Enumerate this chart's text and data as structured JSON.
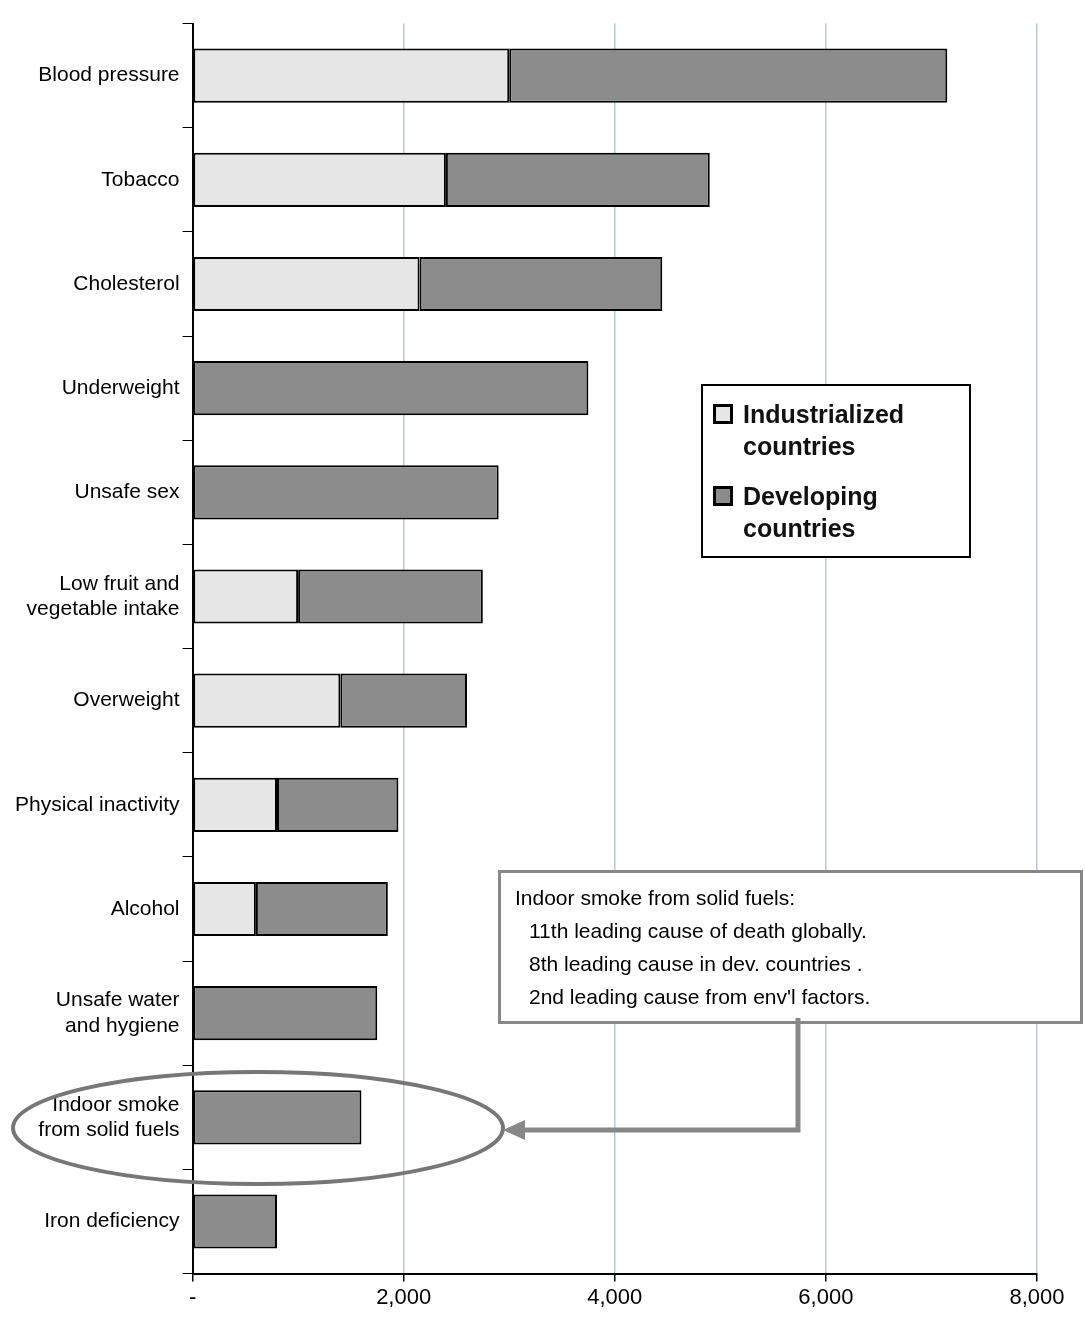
{
  "chart_data": {
    "type": "bar",
    "orientation": "horizontal",
    "stacked": true,
    "categories": [
      "Blood pressure",
      "Tobacco",
      "Cholesterol",
      "Underweight",
      "Unsafe sex",
      "Low fruit and vegetable intake",
      "Overweight",
      "Physical inactivity",
      "Alcohol",
      "Unsafe water and hygiene",
      "Indoor smoke from solid fuels",
      "Iron deficiency"
    ],
    "series": [
      {
        "name": "Industrialized countries",
        "color": "#e6e6e6",
        "values": [
          3000,
          2400,
          2150,
          0,
          0,
          1000,
          1400,
          800,
          600,
          0,
          0,
          0
        ]
      },
      {
        "name": "Developing countries",
        "color": "#8c8c8c",
        "values": [
          4150,
          2500,
          2300,
          3750,
          2900,
          1750,
          1200,
          1150,
          1250,
          1750,
          1600,
          800
        ]
      }
    ],
    "xlim": [
      0,
      8000
    ],
    "xticks": [
      {
        "value": 0,
        "label": "-"
      },
      {
        "value": 2000,
        "label": "2,000"
      },
      {
        "value": 4000,
        "label": "4,000"
      },
      {
        "value": 6000,
        "label": "6,000"
      },
      {
        "value": 8000,
        "label": "8,000"
      }
    ],
    "grid": "x",
    "legend": "right",
    "annotations": [
      "Indoor smoke from solid fuels:",
      "11th leading cause of death globally.",
      "8th leading cause in dev. countries .",
      "2nd leading cause from env'l factors."
    ]
  }
}
